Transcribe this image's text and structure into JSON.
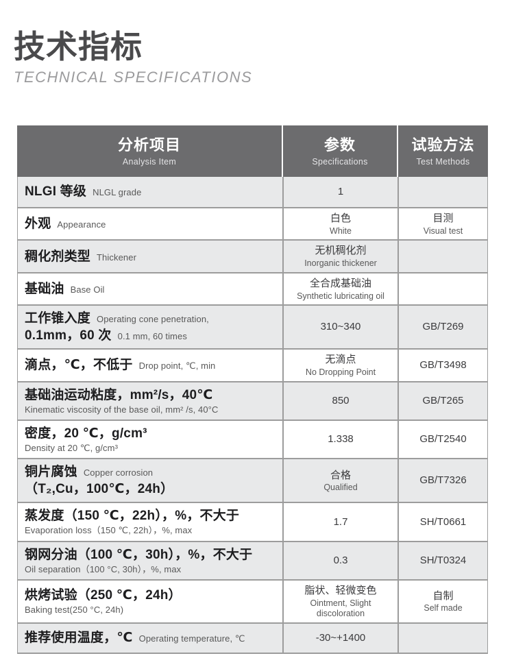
{
  "page": {
    "title": "技术指标",
    "subtitle": "TECHNICAL SPECIFICATIONS"
  },
  "colors": {
    "header_bg": "#6c6c6e",
    "row_alt_bg": "#e8e9ea",
    "border": "#9c9c9c",
    "title_text": "#4a4a4c",
    "subtitle_text": "#9b9b9d"
  },
  "table": {
    "header": {
      "analysis_zh": "分析项目",
      "analysis_en": "Analysis Item",
      "spec_zh": "参数",
      "spec_en": "Specifications",
      "method_zh": "试验方法",
      "method_en": "Test Methods"
    },
    "rows": [
      {
        "item_lines": [
          {
            "zh": "NLGI 等级",
            "en": "NLGL grade"
          }
        ],
        "spec_lines": [
          "1"
        ],
        "method_lines": []
      },
      {
        "item_lines": [
          {
            "zh": "外观",
            "en": "Appearance"
          }
        ],
        "spec_lines": [
          "白色",
          "White"
        ],
        "method_lines": [
          "目测",
          "Visual test"
        ]
      },
      {
        "item_lines": [
          {
            "zh": "稠化剂类型",
            "en": "Thickener"
          }
        ],
        "spec_lines": [
          "无机稠化剂",
          "Inorganic thickener"
        ],
        "method_lines": []
      },
      {
        "item_lines": [
          {
            "zh": "基础油",
            "en": "Base Oil"
          }
        ],
        "spec_lines": [
          "全合成基础油",
          "Synthetic lubricating oil"
        ],
        "method_lines": []
      },
      {
        "item_lines": [
          {
            "zh": "工作锥入度",
            "en": "Operating cone penetration,"
          },
          {
            "zh": "0.1mm，60 次",
            "en": "0.1 mm, 60 times"
          }
        ],
        "spec_lines": [
          "310~340"
        ],
        "method_lines": [
          "GB/T269"
        ]
      },
      {
        "item_lines": [
          {
            "zh": "滴点，℃，不低于",
            "en": "Drop point, ℃, min"
          }
        ],
        "spec_lines": [
          "无滴点",
          "No Dropping Point"
        ],
        "method_lines": [
          "GB/T3498"
        ]
      },
      {
        "item_lines": [
          {
            "zh": "基础油运动粘度，mm²/s，40℃",
            "en": ""
          },
          {
            "zh": "",
            "en": "Kinematic viscosity of the base oil, mm² /s, 40°C"
          }
        ],
        "spec_lines": [
          "850"
        ],
        "method_lines": [
          "GB/T265"
        ]
      },
      {
        "item_lines": [
          {
            "zh": "密度，20 ℃，g/cm³",
            "en": ""
          },
          {
            "zh": "",
            "en": "Density at 20 ℃, g/cm³"
          }
        ],
        "spec_lines": [
          "1.338"
        ],
        "method_lines": [
          "GB/T2540"
        ]
      },
      {
        "item_lines": [
          {
            "zh": "铜片腐蚀",
            "en": "Copper corrosion"
          },
          {
            "zh": "（T₂,Cu，100℃，24h）",
            "en": ""
          }
        ],
        "spec_lines": [
          "合格",
          "Qualified"
        ],
        "method_lines": [
          "GB/T7326"
        ]
      },
      {
        "item_lines": [
          {
            "zh": "蒸发度（150 ℃，22h），%，不大于",
            "en": ""
          },
          {
            "zh": "",
            "en": "Evaporation loss（150 ℃, 22h），%, max"
          }
        ],
        "spec_lines": [
          "1.7"
        ],
        "method_lines": [
          "SH/T0661"
        ]
      },
      {
        "item_lines": [
          {
            "zh": "钢网分油（100 ℃，30h），%，不大于",
            "en": ""
          },
          {
            "zh": "",
            "en": "Oil separation（100 °C, 30h），%, max"
          }
        ],
        "spec_lines": [
          "0.3"
        ],
        "method_lines": [
          "SH/T0324"
        ]
      },
      {
        "item_lines": [
          {
            "zh": "烘烤试验（250 ℃，24h）",
            "en": ""
          },
          {
            "zh": "",
            "en": "Baking test(250 °C, 24h)"
          }
        ],
        "spec_lines": [
          "脂状、轻微变色",
          "Ointment, Slight",
          "discoloration"
        ],
        "method_lines": [
          "自制",
          "Self made"
        ]
      },
      {
        "item_lines": [
          {
            "zh": "推荐使用温度，℃",
            "en": "Operating temperature, ℃"
          }
        ],
        "spec_lines": [
          "-30~+1400"
        ],
        "method_lines": []
      }
    ]
  }
}
